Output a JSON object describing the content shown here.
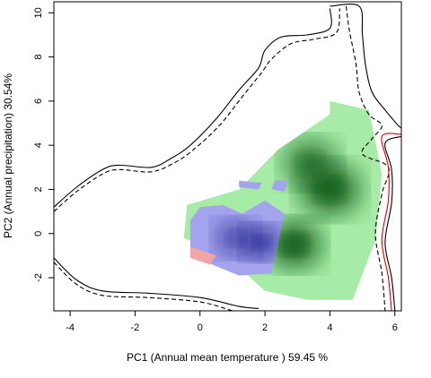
{
  "chart_data": {
    "type": "heatmap",
    "title": "",
    "xlabel": "PC1 (Annual mean temperature ) 59.45 %",
    "ylabel": "PC2 (Annual precipitation) 30.54%",
    "xlim": [
      -4.5,
      6.2
    ],
    "ylim": [
      -3.5,
      10.5
    ],
    "xticks": [
      -4,
      -2,
      0,
      2,
      4,
      6
    ],
    "yticks": [
      -2,
      0,
      2,
      4,
      6,
      8,
      10
    ],
    "xtick_labels": [
      "-4",
      "-2",
      "0",
      "2",
      "4",
      "6"
    ],
    "ytick_labels": [
      "-2",
      "0",
      "2",
      "4",
      "6",
      "8",
      "10"
    ],
    "grid": false,
    "legend": "none",
    "colors": {
      "green_density": "#0a5a14",
      "green_light": "#a6eba6",
      "blue_density": "#202090",
      "blue_light": "#a4a4ee",
      "overlap": "#f4a4a4",
      "envelope_solid": "#000000",
      "envelope_dashed": "#000000",
      "envelope_red": "#e00000"
    },
    "series": [
      {
        "kind": "density",
        "color": "green",
        "extent": [
          [
            -0.4,
            1.3
          ],
          [
            1.2,
            2.0
          ],
          [
            2.4,
            3.8
          ],
          [
            4.0,
            5.4
          ],
          [
            4.0,
            6.0
          ],
          [
            5.2,
            5.6
          ],
          [
            5.6,
            2.7
          ],
          [
            5.4,
            -0.3
          ],
          [
            4.7,
            -3.0
          ],
          [
            3.3,
            -3.0
          ],
          [
            2.0,
            -2.6
          ],
          [
            0.8,
            -1.0
          ],
          [
            -0.5,
            -0.2
          ],
          [
            -0.4,
            1.3
          ]
        ],
        "peaks": [
          {
            "x": 2.9,
            "y": -0.5,
            "weight": 1.0,
            "spread": 0.8
          },
          {
            "x": 4.0,
            "y": 2.0,
            "weight": 0.85,
            "spread": 0.9
          },
          {
            "x": 3.4,
            "y": 3.2,
            "weight": 0.5,
            "spread": 0.8
          }
        ]
      },
      {
        "kind": "density",
        "color": "blue",
        "extent": [
          [
            -0.3,
            0.6
          ],
          [
            0.0,
            1.2
          ],
          [
            0.7,
            1.3
          ],
          [
            1.3,
            0.9
          ],
          [
            2.0,
            1.5
          ],
          [
            2.6,
            0.9
          ],
          [
            2.2,
            -1.8
          ],
          [
            1.2,
            -1.9
          ],
          [
            -0.3,
            -1.0
          ],
          [
            -0.3,
            0.6
          ]
        ],
        "peaks": [
          {
            "x": 1.9,
            "y": -0.4,
            "weight": 1.0,
            "spread": 0.55
          },
          {
            "x": 1.1,
            "y": -0.2,
            "weight": 0.45,
            "spread": 0.6
          }
        ]
      },
      {
        "kind": "region",
        "color": "overlap",
        "extent": [
          [
            -0.3,
            -0.6
          ],
          [
            0.5,
            -1.0
          ],
          [
            0.3,
            -1.4
          ],
          [
            -0.3,
            -1.1
          ],
          [
            -0.3,
            -0.6
          ]
        ]
      },
      {
        "kind": "blob",
        "color": "blue",
        "extent": [
          [
            1.2,
            2.4
          ],
          [
            1.9,
            2.3
          ],
          [
            1.8,
            2.0
          ],
          [
            1.2,
            2.1
          ],
          [
            1.2,
            2.4
          ]
        ]
      },
      {
        "kind": "blob",
        "color": "blue",
        "extent": [
          [
            2.3,
            2.4
          ],
          [
            2.7,
            2.4
          ],
          [
            2.6,
            1.9
          ],
          [
            2.2,
            2.0
          ],
          [
            2.3,
            2.4
          ]
        ]
      },
      {
        "kind": "contour",
        "style": "solid",
        "color": "envelope_solid",
        "points": [
          [
            -4.5,
            1.2
          ],
          [
            -3.8,
            2.1
          ],
          [
            -3.0,
            2.9
          ],
          [
            -2.5,
            3.1
          ],
          [
            -1.5,
            3.0
          ],
          [
            -0.9,
            3.4
          ],
          [
            -0.3,
            4.0
          ],
          [
            0.5,
            5.2
          ],
          [
            1.2,
            6.5
          ],
          [
            1.8,
            7.5
          ],
          [
            2.0,
            8.3
          ],
          [
            2.5,
            8.9
          ],
          [
            3.3,
            9.0
          ],
          [
            4.0,
            9.3
          ],
          [
            4.0,
            10.2
          ]
        ]
      },
      {
        "kind": "contour",
        "style": "dashed",
        "color": "envelope_dashed",
        "points": [
          [
            -4.5,
            1.0
          ],
          [
            -3.8,
            1.9
          ],
          [
            -3.0,
            2.7
          ],
          [
            -2.5,
            2.9
          ],
          [
            -1.5,
            2.8
          ],
          [
            -0.8,
            3.2
          ],
          [
            -0.2,
            3.8
          ],
          [
            0.6,
            4.9
          ],
          [
            1.3,
            6.2
          ],
          [
            1.9,
            7.3
          ],
          [
            2.2,
            7.9
          ],
          [
            2.8,
            8.6
          ],
          [
            3.5,
            8.8
          ],
          [
            4.2,
            9.1
          ],
          [
            4.3,
            10.2
          ]
        ]
      },
      {
        "kind": "contour",
        "style": "solid",
        "color": "envelope_solid",
        "points": [
          [
            -4.5,
            -1.1
          ],
          [
            -3.8,
            -2.1
          ],
          [
            -3.0,
            -2.6
          ],
          [
            -1.6,
            -2.7
          ],
          [
            0.0,
            -2.9
          ],
          [
            1.2,
            -3.3
          ],
          [
            1.8,
            -3.4
          ]
        ]
      },
      {
        "kind": "contour",
        "style": "dashed",
        "color": "envelope_dashed",
        "points": [
          [
            -4.5,
            -1.3
          ],
          [
            -3.8,
            -2.3
          ],
          [
            -3.0,
            -2.8
          ],
          [
            -1.6,
            -2.9
          ],
          [
            0.0,
            -3.1
          ],
          [
            1.0,
            -3.5
          ]
        ]
      },
      {
        "kind": "contour",
        "style": "solid",
        "color": "envelope_solid",
        "points": [
          [
            4.0,
            10.3
          ],
          [
            4.9,
            10.3
          ],
          [
            5.0,
            9.0
          ],
          [
            5.1,
            7.6
          ],
          [
            5.3,
            6.4
          ],
          [
            5.7,
            5.6
          ],
          [
            6.1,
            4.9
          ],
          [
            6.2,
            4.8
          ]
        ]
      },
      {
        "kind": "contour",
        "style": "dashed",
        "color": "envelope_dashed",
        "points": [
          [
            4.5,
            10.3
          ],
          [
            4.6,
            9.2
          ],
          [
            4.8,
            7.7
          ],
          [
            4.9,
            6.4
          ],
          [
            5.2,
            5.4
          ],
          [
            5.6,
            4.9
          ],
          [
            5.3,
            4.3
          ],
          [
            5.0,
            3.6
          ],
          [
            5.8,
            3.0
          ],
          [
            5.6,
            1.8
          ],
          [
            5.4,
            0.0
          ],
          [
            5.6,
            -1.8
          ],
          [
            5.7,
            -3.5
          ]
        ]
      },
      {
        "kind": "contour",
        "style": "solid",
        "color": "envelope_red",
        "points": [
          [
            6.2,
            4.5
          ],
          [
            5.6,
            4.4
          ],
          [
            5.8,
            3.0
          ],
          [
            5.8,
            1.5
          ],
          [
            5.6,
            -0.3
          ],
          [
            5.8,
            -2.0
          ],
          [
            5.9,
            -3.5
          ]
        ]
      },
      {
        "kind": "contour",
        "style": "solid",
        "color": "envelope_solid",
        "points": [
          [
            6.2,
            4.4
          ],
          [
            5.7,
            4.1
          ],
          [
            5.9,
            2.9
          ],
          [
            5.9,
            1.4
          ],
          [
            5.7,
            -0.4
          ],
          [
            5.9,
            -2.0
          ],
          [
            6.0,
            -3.5
          ]
        ]
      }
    ]
  }
}
